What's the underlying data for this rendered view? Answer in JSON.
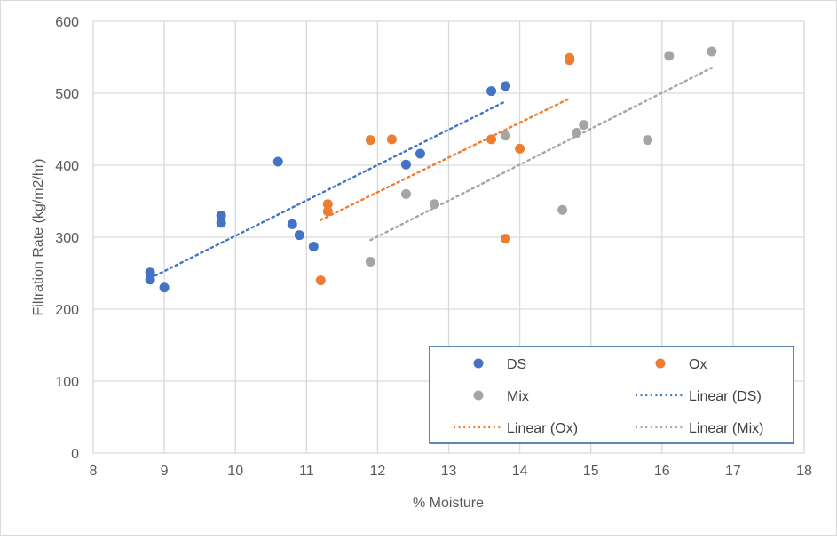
{
  "chart_data": {
    "type": "scatter",
    "title": "",
    "xlabel": "% Moisture",
    "ylabel": "Filtration Rate (kg/m2/hr)",
    "xlim": [
      8,
      18
    ],
    "ylim": [
      0,
      600
    ],
    "xticks": [
      8,
      9,
      10,
      11,
      12,
      13,
      14,
      15,
      16,
      17,
      18
    ],
    "yticks": [
      0,
      100,
      200,
      300,
      400,
      500,
      600
    ],
    "grid": true,
    "legend_placement": "bottom-right",
    "series": [
      {
        "name": "DS",
        "color": "#4472c4",
        "points": [
          [
            8.8,
            251
          ],
          [
            8.8,
            241
          ],
          [
            9.0,
            230
          ],
          [
            9.8,
            330
          ],
          [
            9.8,
            320
          ],
          [
            10.6,
            405
          ],
          [
            10.8,
            318
          ],
          [
            10.9,
            303
          ],
          [
            11.1,
            287
          ],
          [
            12.4,
            401
          ],
          [
            12.6,
            416
          ],
          [
            13.6,
            503
          ],
          [
            13.8,
            510
          ]
        ],
        "trendline": {
          "name": "Linear (DS)",
          "type": "linear"
        }
      },
      {
        "name": "Ox",
        "color": "#ed7d31",
        "points": [
          [
            11.2,
            240
          ],
          [
            11.3,
            346
          ],
          [
            11.3,
            336
          ],
          [
            11.9,
            435
          ],
          [
            12.2,
            436
          ],
          [
            13.6,
            436
          ],
          [
            13.8,
            298
          ],
          [
            14.0,
            423
          ],
          [
            14.7,
            546
          ],
          [
            14.7,
            549
          ]
        ],
        "trendline": {
          "name": "Linear (Ox)",
          "type": "linear"
        }
      },
      {
        "name": "Mix",
        "color": "#a5a5a5",
        "points": [
          [
            11.9,
            266
          ],
          [
            12.4,
            360
          ],
          [
            12.8,
            346
          ],
          [
            13.8,
            441
          ],
          [
            14.6,
            338
          ],
          [
            14.8,
            445
          ],
          [
            14.9,
            456
          ],
          [
            15.8,
            435
          ],
          [
            16.1,
            552
          ],
          [
            16.7,
            558
          ]
        ],
        "trendline": {
          "name": "Linear (Mix)",
          "type": "linear"
        }
      }
    ],
    "legend": [
      {
        "label": "DS",
        "kind": "marker",
        "series": 0
      },
      {
        "label": "Ox",
        "kind": "marker",
        "series": 1
      },
      {
        "label": "Mix",
        "kind": "marker",
        "series": 2
      },
      {
        "label": "Linear (DS)",
        "kind": "line",
        "series": 0
      },
      {
        "label": "Linear (Ox)",
        "kind": "line",
        "series": 1
      },
      {
        "label": "Linear (Mix)",
        "kind": "line",
        "series": 2
      }
    ]
  },
  "colors": {
    "grid": "#d9d9d9",
    "axis_text": "#595959",
    "legend_border": "#2e5c9a",
    "ds_trend": "#4472c4",
    "ox_trend": "#ed7d31",
    "mix_trend": "#a5a5a5"
  }
}
